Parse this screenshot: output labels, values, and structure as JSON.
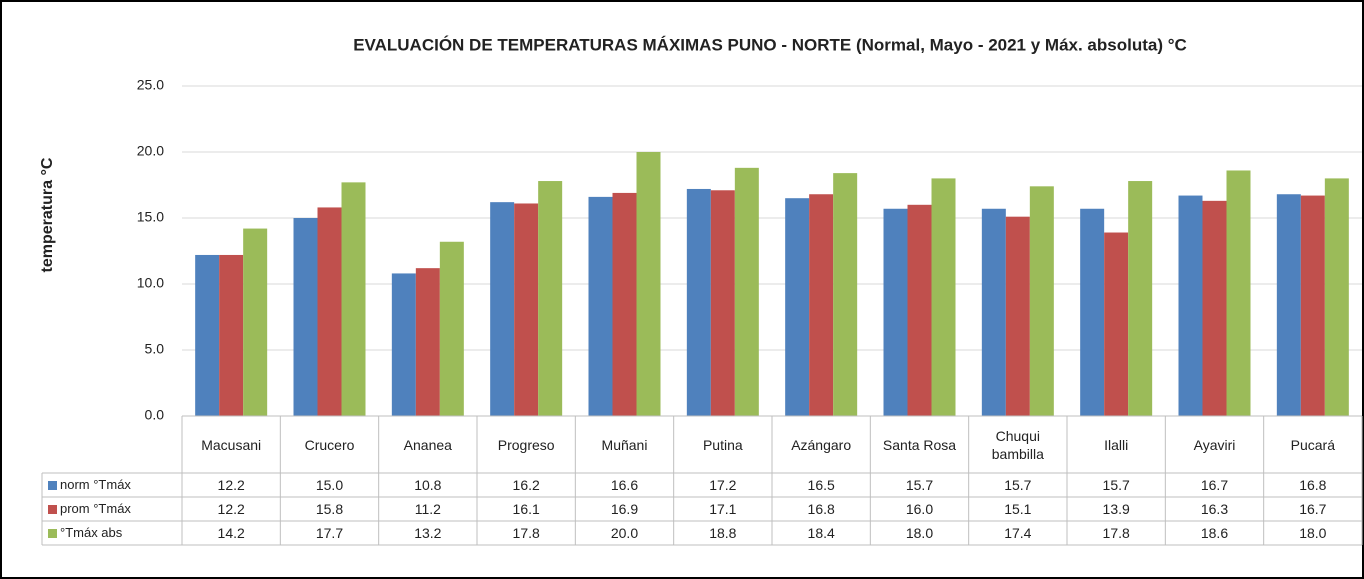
{
  "chart_data": {
    "type": "bar",
    "title": "EVALUACIÓN DE TEMPERATURAS MÁXIMAS PUNO - NORTE (Normal, Mayo - 2021 y Máx. absoluta) °C",
    "y_label": "temperatura °C",
    "categories": [
      "Macusani",
      "Crucero",
      "Ananea",
      "Progreso",
      "Muñani",
      "Putina",
      "Azángaro",
      "Santa Rosa",
      "Chuqui bambilla",
      "Ilalli",
      "Ayaviri",
      "Pucará"
    ],
    "series": [
      {
        "name": "norm °Tmáx",
        "color": "#4f81bd",
        "values": [
          12.2,
          15,
          10.8,
          16.2,
          16.6,
          17.2,
          16.5,
          15.7,
          15.7,
          15.7,
          16.7,
          16.8
        ],
        "value_labels": [
          "12.2",
          "15.0",
          "10.8",
          "16.2",
          "16.6",
          "17.2",
          "16.5",
          "15.7",
          "15.7",
          "15.7",
          "16.7",
          "16.8"
        ]
      },
      {
        "name": "prom °Tmáx",
        "color": "#c0504d",
        "values": [
          12.2,
          15.8,
          11.2,
          16.1,
          16.9,
          17.1,
          16.8,
          16,
          15.1,
          13.9,
          16.3,
          16.7
        ],
        "value_labels": [
          "12.2",
          "15.8",
          "11.2",
          "16.1",
          "16.9",
          "17.1",
          "16.8",
          "16.0",
          "15.1",
          "13.9",
          "16.3",
          "16.7"
        ]
      },
      {
        "name": "°Tmáx abs",
        "color": "#9bbb59",
        "values": [
          14.2,
          17.7,
          13.2,
          17.8,
          20,
          18.8,
          18.4,
          18,
          17.4,
          17.8,
          18.6,
          18
        ],
        "value_labels": [
          "14.2",
          "17.7",
          "13.2",
          "17.8",
          "20.0",
          "18.8",
          "18.4",
          "18.0",
          "17.4",
          "17.8",
          "18.6",
          "18.0"
        ]
      }
    ],
    "ylim": [
      0,
      25
    ],
    "yticks": [
      {
        "value": 0,
        "label": "0.0"
      },
      {
        "value": 5,
        "label": "5.0"
      },
      {
        "value": 10,
        "label": "10.0"
      },
      {
        "value": 15,
        "label": "15.0"
      },
      {
        "value": 20,
        "label": "20.0"
      },
      {
        "value": 25,
        "label": "25.0"
      }
    ],
    "grid": true
  }
}
